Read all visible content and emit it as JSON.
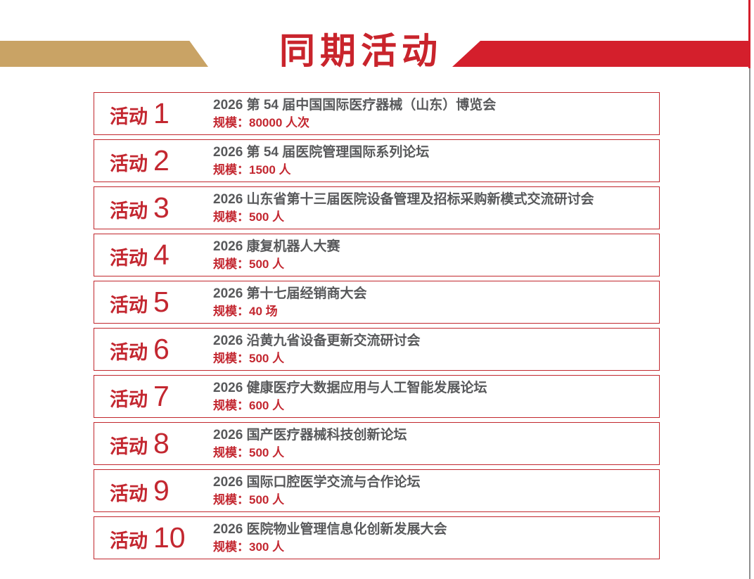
{
  "header": {
    "title": "同期活动"
  },
  "activities": [
    {
      "label": "活动",
      "number": "1",
      "title": "2026 第 54 届中国国际医疗器械（山东）博览会",
      "scale_label": "规模：",
      "scale_value": "80000 人次"
    },
    {
      "label": "活动",
      "number": "2",
      "title": "2026 第 54 届医院管理国际系列论坛",
      "scale_label": "规模：",
      "scale_value": "1500 人"
    },
    {
      "label": "活动",
      "number": "3",
      "title": "2026 山东省第十三届医院设备管理及招标采购新模式交流研讨会",
      "scale_label": "规模：",
      "scale_value": "500 人"
    },
    {
      "label": "活动",
      "number": "4",
      "title": "2026 康复机器人大赛",
      "scale_label": "规模：",
      "scale_value": "500 人"
    },
    {
      "label": "活动",
      "number": "5",
      "title": "2026 第十七届经销商大会",
      "scale_label": "规模：",
      "scale_value": "40 场"
    },
    {
      "label": "活动",
      "number": "6",
      "title": "2026 沿黄九省设备更新交流研讨会",
      "scale_label": "规模：",
      "scale_value": "500 人"
    },
    {
      "label": "活动",
      "number": "7",
      "title": "2026 健康医疗大数据应用与人工智能发展论坛",
      "scale_label": "规模：",
      "scale_value": "600 人"
    },
    {
      "label": "活动",
      "number": "8",
      "title": "2026 国产医疗器械科技创新论坛",
      "scale_label": "规模：",
      "scale_value": "500 人"
    },
    {
      "label": "活动",
      "number": "9",
      "title": "2026 国际口腔医学交流与合作论坛",
      "scale_label": "规模：",
      "scale_value": "500 人"
    },
    {
      "label": "活动",
      "number": "10",
      "title": "2026 医院物业管理信息化创新发展大会",
      "scale_label": "规模：",
      "scale_value": "300 人"
    }
  ],
  "colors": {
    "banner_red": "#d41f2c",
    "banner_gold": "#c9a365",
    "title_red": "#c9242c",
    "box_border_red": "#c1272d",
    "label_red": "#c32730",
    "title_gray": "#58595b",
    "edge_gray": "#8f8f8f"
  }
}
